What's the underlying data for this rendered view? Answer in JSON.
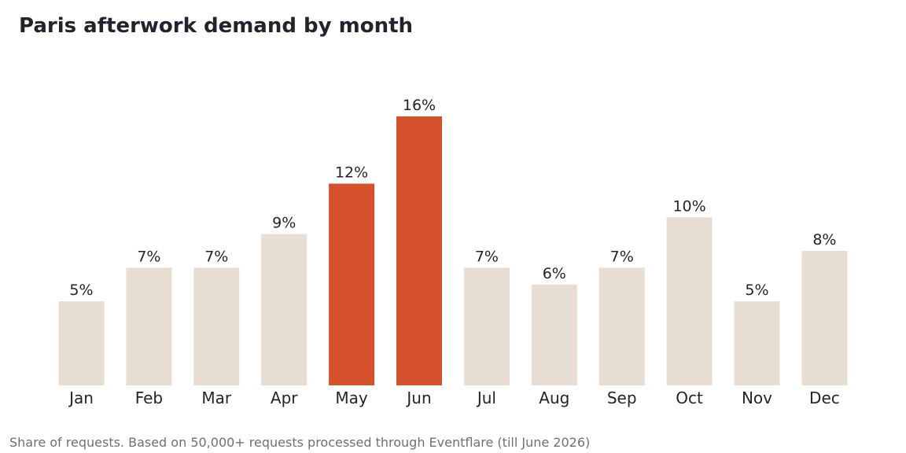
{
  "chart_data": {
    "type": "bar",
    "title": "Paris afterwork demand by month",
    "subtitle": "Share of requests. Based on 50,000+ requests processed through Eventflare (till June 2026)",
    "categories": [
      "Jan",
      "Feb",
      "Mar",
      "Apr",
      "May",
      "Jun",
      "Jul",
      "Aug",
      "Sep",
      "Oct",
      "Nov",
      "Dec"
    ],
    "values": [
      5,
      7,
      7,
      9,
      12,
      16,
      7,
      6,
      7,
      10,
      5,
      8
    ],
    "value_labels": [
      "5%",
      "7%",
      "7%",
      "9%",
      "12%",
      "16%",
      "7%",
      "6%",
      "7%",
      "10%",
      "5%",
      "8%"
    ],
    "highlighted": [
      "May",
      "Jun"
    ],
    "unit": "%",
    "xlabel": "",
    "ylabel": "",
    "ylim": [
      0,
      16
    ],
    "grid": false,
    "legend": "none",
    "colors": {
      "bar": "#e8ddd3",
      "highlight": "#d6522c",
      "text": "#23232f",
      "footnote": "#6f6f77"
    }
  }
}
